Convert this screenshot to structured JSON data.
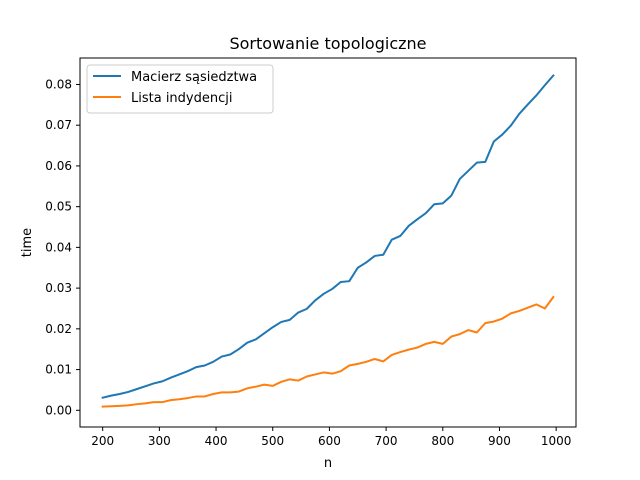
{
  "chart_data": {
    "type": "line",
    "title": "Sortowanie topologiczne",
    "xlabel": "n",
    "ylabel": "time",
    "xlim": [
      160,
      1035
    ],
    "ylim": [
      -0.0041,
      0.0865
    ],
    "xticks": [
      200,
      300,
      400,
      500,
      600,
      700,
      800,
      900,
      1000
    ],
    "xtick_labels": [
      "200",
      "300",
      "400",
      "500",
      "600",
      "700",
      "800",
      "900",
      "1000"
    ],
    "yticks": [
      0.0,
      0.01,
      0.02,
      0.03,
      0.04,
      0.05,
      0.06,
      0.07,
      0.08
    ],
    "ytick_labels": [
      "0.00",
      "0.01",
      "0.02",
      "0.03",
      "0.04",
      "0.05",
      "0.06",
      "0.07",
      "0.08"
    ],
    "grid": false,
    "legend_position": "upper-left",
    "x": [
      200,
      215,
      230,
      245,
      260,
      275,
      290,
      305,
      320,
      335,
      350,
      365,
      380,
      395,
      410,
      425,
      440,
      455,
      470,
      485,
      500,
      515,
      530,
      545,
      560,
      575,
      590,
      605,
      620,
      635,
      650,
      665,
      680,
      695,
      710,
      725,
      740,
      755,
      770,
      785,
      800,
      815,
      830,
      845,
      860,
      875,
      890,
      905,
      920,
      935,
      950,
      965,
      980,
      995
    ],
    "series": [
      {
        "name": "Macierz sąsiedztwa",
        "color": "#1f77b4",
        "values": [
          0.0031,
          0.0036,
          0.004,
          0.0045,
          0.0052,
          0.0059,
          0.0066,
          0.0071,
          0.008,
          0.0088,
          0.0096,
          0.0106,
          0.011,
          0.0119,
          0.0132,
          0.0137,
          0.015,
          0.0166,
          0.0174,
          0.0189,
          0.0204,
          0.0217,
          0.0222,
          0.024,
          0.0249,
          0.027,
          0.0286,
          0.0298,
          0.0315,
          0.0317,
          0.035,
          0.0363,
          0.0379,
          0.0382,
          0.0419,
          0.0428,
          0.0453,
          0.0469,
          0.0484,
          0.0506,
          0.0508,
          0.0527,
          0.0568,
          0.0588,
          0.0608,
          0.061,
          0.066,
          0.0677,
          0.0699,
          0.0728,
          0.0751,
          0.0773,
          0.0798,
          0.0822
        ]
      },
      {
        "name": "Lista indydencji",
        "color": "#ff7f0e",
        "values": [
          0.0009,
          0.001,
          0.0011,
          0.0012,
          0.0015,
          0.0017,
          0.002,
          0.002,
          0.0025,
          0.0027,
          0.003,
          0.0034,
          0.0034,
          0.004,
          0.0044,
          0.0044,
          0.0046,
          0.0054,
          0.0058,
          0.0063,
          0.006,
          0.007,
          0.0076,
          0.0073,
          0.0083,
          0.0088,
          0.0093,
          0.009,
          0.0096,
          0.011,
          0.0114,
          0.0119,
          0.0126,
          0.012,
          0.0136,
          0.0143,
          0.0149,
          0.0154,
          0.0163,
          0.0168,
          0.0163,
          0.0181,
          0.0187,
          0.0197,
          0.0191,
          0.0214,
          0.0218,
          0.0225,
          0.0238,
          0.0244,
          0.0252,
          0.026,
          0.025,
          0.0278
        ]
      }
    ]
  }
}
